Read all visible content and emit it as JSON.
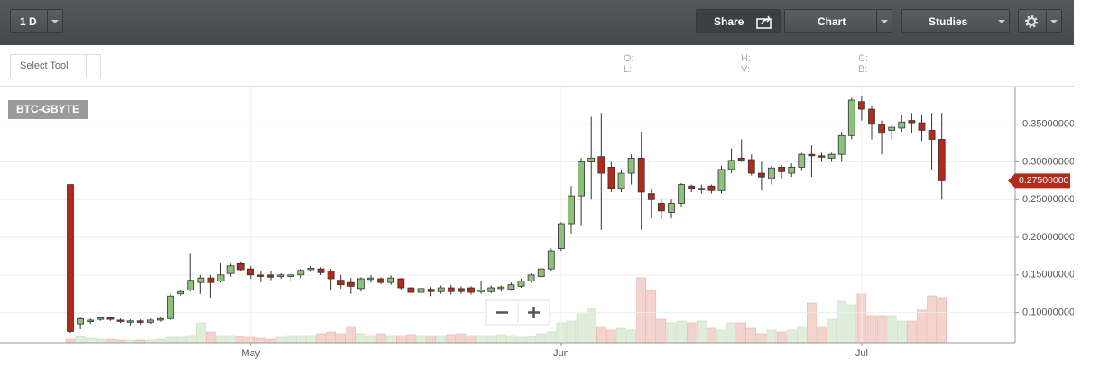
{
  "toolbar": {
    "interval": "1 D",
    "share": "Share",
    "chart": "Chart",
    "studies": "Studies",
    "select_tool": "Select Tool",
    "ohlc_labels": {
      "open": "O:",
      "low": "L:",
      "high": "H:",
      "volume": "V:",
      "close": "C:",
      "bid": "B:"
    }
  },
  "chart_data": {
    "type": "candlestick",
    "symbol": "BTC-GBYTE",
    "categories": [
      null,
      null,
      null,
      null,
      null,
      null,
      null,
      null,
      null,
      null,
      null,
      null,
      null,
      null,
      null,
      null,
      null,
      null,
      "May",
      null,
      null,
      null,
      null,
      null,
      null,
      null,
      null,
      null,
      null,
      null,
      null,
      null,
      null,
      null,
      null,
      null,
      null,
      null,
      null,
      null,
      null,
      null,
      null,
      null,
      null,
      null,
      null,
      null,
      null,
      "Jun",
      null,
      null,
      null,
      null,
      null,
      null,
      null,
      null,
      null,
      null,
      null,
      null,
      null,
      null,
      null,
      null,
      null,
      null,
      null,
      null,
      null,
      null,
      null,
      null,
      null,
      null,
      null,
      null,
      null,
      "Jul",
      null,
      null,
      null,
      null,
      null,
      null,
      null,
      null
    ],
    "open": [
      0.27,
      0.085,
      0.088,
      0.091,
      0.093,
      0.09,
      0.088,
      0.089,
      0.087,
      0.09,
      0.092,
      0.125,
      0.13,
      0.14,
      0.146,
      0.142,
      0.152,
      0.165,
      0.158,
      0.15,
      0.15,
      0.148,
      0.148,
      0.15,
      0.157,
      0.158,
      0.155,
      0.143,
      0.14,
      0.132,
      0.144,
      0.145,
      0.14,
      0.145,
      0.133,
      0.127,
      0.131,
      0.128,
      0.133,
      0.132,
      0.133,
      0.128,
      0.128,
      0.132,
      0.131,
      0.135,
      0.142,
      0.148,
      0.158,
      0.185,
      0.218,
      0.255,
      0.3,
      0.307,
      0.293,
      0.265,
      0.285,
      0.305,
      0.258,
      0.245,
      0.233,
      0.245,
      0.268,
      0.263,
      0.268,
      0.262,
      0.29,
      0.305,
      0.303,
      0.285,
      0.278,
      0.293,
      0.285,
      0.293,
      0.31,
      0.308,
      0.305,
      0.31,
      0.335,
      0.38,
      0.37,
      0.35,
      0.342,
      0.345,
      0.355,
      0.352,
      0.342,
      0.33
    ],
    "high": [
      0.27,
      0.094,
      0.092,
      0.094,
      0.094,
      0.092,
      0.091,
      0.091,
      0.092,
      0.094,
      0.125,
      0.13,
      0.178,
      0.15,
      0.15,
      0.165,
      0.165,
      0.168,
      0.162,
      0.155,
      0.155,
      0.152,
      0.152,
      0.158,
      0.162,
      0.16,
      0.158,
      0.15,
      0.146,
      0.147,
      0.15,
      0.147,
      0.149,
      0.146,
      0.136,
      0.135,
      0.134,
      0.136,
      0.137,
      0.135,
      0.135,
      0.142,
      0.136,
      0.136,
      0.14,
      0.145,
      0.152,
      0.16,
      0.185,
      0.22,
      0.268,
      0.305,
      0.36,
      0.365,
      0.3,
      0.29,
      0.31,
      0.34,
      0.265,
      0.25,
      0.25,
      0.272,
      0.27,
      0.27,
      0.27,
      0.295,
      0.318,
      0.33,
      0.31,
      0.3,
      0.295,
      0.296,
      0.298,
      0.312,
      0.322,
      0.312,
      0.312,
      0.34,
      0.385,
      0.388,
      0.375,
      0.355,
      0.348,
      0.362,
      0.365,
      0.362,
      0.365,
      0.365
    ],
    "low": [
      0.073,
      0.078,
      0.085,
      0.089,
      0.089,
      0.086,
      0.083,
      0.084,
      0.085,
      0.088,
      0.09,
      0.122,
      0.128,
      0.125,
      0.12,
      0.14,
      0.148,
      0.155,
      0.145,
      0.14,
      0.143,
      0.145,
      0.142,
      0.146,
      0.154,
      0.15,
      0.13,
      0.132,
      0.125,
      0.128,
      0.14,
      0.138,
      0.137,
      0.13,
      0.123,
      0.124,
      0.122,
      0.125,
      0.124,
      0.125,
      0.124,
      0.125,
      0.126,
      0.128,
      0.129,
      0.133,
      0.14,
      0.146,
      0.155,
      0.182,
      0.205,
      0.215,
      0.25,
      0.21,
      0.26,
      0.26,
      0.27,
      0.21,
      0.225,
      0.225,
      0.225,
      0.24,
      0.26,
      0.258,
      0.258,
      0.258,
      0.285,
      0.3,
      0.282,
      0.262,
      0.27,
      0.278,
      0.28,
      0.288,
      0.28,
      0.3,
      0.3,
      0.3,
      0.33,
      0.355,
      0.33,
      0.31,
      0.33,
      0.34,
      0.338,
      0.328,
      0.29,
      0.25
    ],
    "close": [
      0.075,
      0.092,
      0.09,
      0.093,
      0.091,
      0.089,
      0.089,
      0.087,
      0.09,
      0.092,
      0.122,
      0.128,
      0.143,
      0.146,
      0.14,
      0.15,
      0.162,
      0.157,
      0.15,
      0.148,
      0.147,
      0.15,
      0.15,
      0.156,
      0.159,
      0.153,
      0.145,
      0.137,
      0.135,
      0.145,
      0.146,
      0.14,
      0.146,
      0.133,
      0.127,
      0.132,
      0.128,
      0.133,
      0.128,
      0.128,
      0.127,
      0.13,
      0.133,
      0.134,
      0.137,
      0.142,
      0.15,
      0.158,
      0.182,
      0.218,
      0.255,
      0.3,
      0.305,
      0.285,
      0.265,
      0.285,
      0.305,
      0.26,
      0.25,
      0.235,
      0.245,
      0.27,
      0.265,
      0.265,
      0.262,
      0.29,
      0.302,
      0.302,
      0.285,
      0.28,
      0.292,
      0.287,
      0.293,
      0.31,
      0.308,
      0.307,
      0.31,
      0.335,
      0.382,
      0.37,
      0.35,
      0.338,
      0.346,
      0.353,
      0.352,
      0.342,
      0.33,
      0.275
    ],
    "volume": [
      4,
      7,
      5,
      4,
      4,
      3,
      3,
      3,
      3,
      4,
      6,
      6,
      8,
      22,
      12,
      8,
      8,
      7,
      6,
      5,
      4,
      6,
      8,
      8,
      8,
      10,
      12,
      10,
      18,
      10,
      8,
      10,
      8,
      8,
      9,
      8,
      8,
      8,
      9,
      10,
      8,
      8,
      8,
      9,
      8,
      6,
      7,
      10,
      12,
      22,
      24,
      32,
      38,
      18,
      14,
      16,
      14,
      72,
      58,
      26,
      22,
      24,
      22,
      24,
      16,
      14,
      22,
      22,
      16,
      10,
      14,
      12,
      14,
      18,
      44,
      18,
      26,
      46,
      42,
      54,
      30,
      30,
      30,
      24,
      24,
      36,
      52,
      50
    ],
    "vlim": [
      0,
      100
    ],
    "up_color": "#8dc07b",
    "down_color": "#b22a1a",
    "volume_up_color": "#dfeedb",
    "volume_down_color": "#f3d3cd",
    "ylim": [
      0.06,
      0.4
    ],
    "yticks": [
      {
        "value": 0.1,
        "label": "0.10000000"
      },
      {
        "value": 0.15,
        "label": "0.15000000"
      },
      {
        "value": 0.2,
        "label": "0.20000000"
      },
      {
        "value": 0.25,
        "label": "0.25000000"
      },
      {
        "value": 0.3,
        "label": "0.30000000"
      },
      {
        "value": 0.35,
        "label": "0.35000000"
      }
    ],
    "last_price": {
      "value": 0.275,
      "label": "0.27500000"
    },
    "grid": true
  }
}
